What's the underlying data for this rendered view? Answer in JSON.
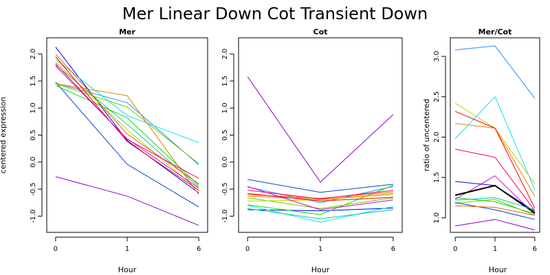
{
  "title": "Mer Linear Down Cot Transient Down",
  "chart_data": [
    {
      "type": "line",
      "title": "Mer",
      "xlabel": "Hour",
      "ylabel": "centered expression",
      "categories": [
        "0",
        "1",
        "6"
      ],
      "ylim": [
        -1.3,
        2.3
      ],
      "yticks": [
        "-1.0",
        "-0.5",
        "0.0",
        "0.5",
        "1.0",
        "1.5",
        "2.0"
      ],
      "series": [
        {
          "color": "#0000ff",
          "values": [
            2.13,
            0.4,
            -0.57
          ]
        },
        {
          "color": "#0044cc",
          "values": [
            1.48,
            -0.04,
            -0.83
          ]
        },
        {
          "color": "#1e90ff",
          "values": [
            1.46,
            1.1,
            -0.05
          ]
        },
        {
          "color": "#00e5ee",
          "values": [
            1.9,
            0.86,
            0.36
          ]
        },
        {
          "color": "#00cc99",
          "values": [
            1.8,
            0.7,
            -0.46
          ]
        },
        {
          "color": "#66cc00",
          "values": [
            1.45,
            1.02,
            -0.03
          ]
        },
        {
          "color": "#00dd00",
          "values": [
            1.42,
            0.82,
            -0.43
          ]
        },
        {
          "color": "#cccc00",
          "values": [
            1.85,
            0.6,
            -0.53
          ]
        },
        {
          "color": "#e67e00",
          "values": [
            1.45,
            1.23,
            -0.6
          ]
        },
        {
          "color": "#dd6600",
          "values": [
            2.0,
            0.52,
            -0.4
          ]
        },
        {
          "color": "#ff0000",
          "values": [
            1.95,
            0.38,
            -0.52
          ]
        },
        {
          "color": "#ff0066",
          "values": [
            1.82,
            0.42,
            -0.3
          ]
        },
        {
          "color": "#cc00cc",
          "values": [
            1.78,
            0.43,
            -0.48
          ]
        },
        {
          "color": "#8800cc",
          "values": [
            -0.27,
            -0.63,
            -1.17
          ]
        }
      ]
    },
    {
      "type": "line",
      "title": "Cot",
      "xlabel": "Hour",
      "categories": [
        "0",
        "1",
        "6"
      ],
      "ylim": [
        -1.3,
        2.3
      ],
      "yticks": [
        "-1.0",
        "-0.5",
        "0.0",
        "0.5",
        "1.0",
        "1.5",
        "2.0"
      ],
      "series": [
        {
          "color": "#8800cc",
          "values": [
            1.58,
            -0.37,
            0.88
          ]
        },
        {
          "color": "#0044cc",
          "values": [
            -0.32,
            -0.56,
            -0.41
          ]
        },
        {
          "color": "#1e90ff",
          "values": [
            -0.46,
            -0.75,
            -0.45
          ]
        },
        {
          "color": "#0000ff",
          "values": [
            -0.88,
            -0.9,
            -0.85
          ]
        },
        {
          "color": "#00e5ee",
          "values": [
            -0.8,
            -1.11,
            -0.82
          ]
        },
        {
          "color": "#00cc99",
          "values": [
            -0.86,
            -1.05,
            -0.88
          ]
        },
        {
          "color": "#00dd00",
          "values": [
            -0.79,
            -0.97,
            -0.43
          ]
        },
        {
          "color": "#66cc00",
          "values": [
            -0.66,
            -0.86,
            -0.66
          ]
        },
        {
          "color": "#cccc00",
          "values": [
            -0.72,
            -0.7,
            -0.6
          ]
        },
        {
          "color": "#e67e00",
          "values": [
            -0.63,
            -0.69,
            -0.58
          ]
        },
        {
          "color": "#dd6600",
          "values": [
            -0.6,
            -0.67,
            -0.55
          ]
        },
        {
          "color": "#ff0000",
          "values": [
            -0.58,
            -0.72,
            -0.65
          ]
        },
        {
          "color": "#ff0066",
          "values": [
            -0.52,
            -0.68,
            -0.52
          ]
        },
        {
          "color": "#cc00cc",
          "values": [
            -0.45,
            -0.88,
            -0.7
          ]
        }
      ]
    },
    {
      "type": "line",
      "title": "Mer/Cot",
      "xlabel": "Hour",
      "ylabel": "ratio of uncentered",
      "categories": [
        "0",
        "1",
        "6"
      ],
      "ylim": [
        0.82,
        3.23
      ],
      "yticks": [
        "1.0",
        "1.5",
        "2.0",
        "2.5",
        "3.0"
      ],
      "series": [
        {
          "color": "#1e90ff",
          "values": [
            3.08,
            3.13,
            2.48
          ]
        },
        {
          "color": "#00e5ee",
          "values": [
            1.98,
            2.5,
            1.35
          ]
        },
        {
          "color": "#cccc00",
          "values": [
            2.42,
            2.11,
            1.42
          ]
        },
        {
          "color": "#e67e00",
          "values": [
            2.17,
            2.11,
            1.27
          ]
        },
        {
          "color": "#ff0000",
          "values": [
            2.32,
            2.11,
            1.12
          ]
        },
        {
          "color": "#ff0066",
          "values": [
            1.85,
            1.75,
            1.09
          ]
        },
        {
          "color": "#cc00cc",
          "values": [
            1.23,
            1.52,
            1.04
          ]
        },
        {
          "color": "#0000ff",
          "values": [
            1.45,
            1.4,
            1.08
          ]
        },
        {
          "color": "#000000",
          "values": [
            1.28,
            1.4,
            1.06
          ],
          "width": 2
        },
        {
          "color": "#00dd00",
          "values": [
            1.25,
            1.2,
            1.05
          ]
        },
        {
          "color": "#00cc99",
          "values": [
            1.22,
            1.25,
            1.1
          ]
        },
        {
          "color": "#66cc00",
          "values": [
            1.18,
            1.23,
            1.03
          ]
        },
        {
          "color": "#0044cc",
          "values": [
            1.19,
            1.1,
            0.98
          ]
        },
        {
          "color": "#dd6600",
          "values": [
            1.15,
            1.13,
            1.03
          ]
        },
        {
          "color": "#8800cc",
          "values": [
            0.9,
            0.98,
            0.85
          ]
        }
      ]
    }
  ]
}
